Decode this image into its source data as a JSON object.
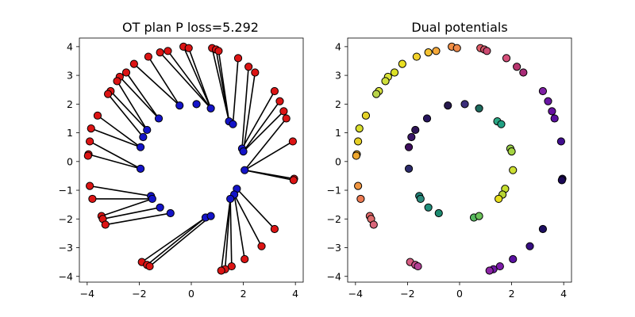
{
  "figure": {
    "background": "#ffffff"
  },
  "chart_data": [
    {
      "type": "scatter",
      "title": "OT plan P loss=5.292",
      "xlim": [
        -4.3,
        4.3
      ],
      "ylim": [
        -4.2,
        4.3
      ],
      "xticks": [
        -4,
        -2,
        0,
        2,
        4
      ],
      "yticks": [
        -4,
        -3,
        -2,
        -1,
        0,
        1,
        2,
        3,
        4
      ],
      "grid": false,
      "source_color": "#1414c8",
      "target_color": "#dc1414",
      "source_points": [
        [
          -0.45,
          1.95
        ],
        [
          0.2,
          2.0
        ],
        [
          0.75,
          1.85
        ],
        [
          1.45,
          1.4
        ],
        [
          1.6,
          1.3
        ],
        [
          -1.25,
          1.5
        ],
        [
          -1.7,
          1.1
        ],
        [
          -1.85,
          0.85
        ],
        [
          -1.95,
          0.5
        ],
        [
          1.95,
          0.45
        ],
        [
          2.0,
          0.35
        ],
        [
          2.05,
          -0.3
        ],
        [
          -1.95,
          -0.25
        ],
        [
          1.75,
          -0.95
        ],
        [
          1.65,
          -1.15
        ],
        [
          1.5,
          -1.3
        ],
        [
          -1.55,
          -1.2
        ],
        [
          -1.5,
          -1.3
        ],
        [
          -1.2,
          -1.6
        ],
        [
          -0.8,
          -1.8
        ],
        [
          0.55,
          -1.95
        ],
        [
          0.75,
          -1.9
        ]
      ],
      "target_points": [
        [
          -2.2,
          3.4
        ],
        [
          -1.65,
          3.65
        ],
        [
          -1.2,
          3.8
        ],
        [
          -0.9,
          3.85
        ],
        [
          -0.3,
          4.0
        ],
        [
          -0.1,
          3.95
        ],
        [
          0.8,
          3.95
        ],
        [
          0.95,
          3.9
        ],
        [
          1.05,
          3.85
        ],
        [
          1.8,
          3.6
        ],
        [
          2.2,
          3.3
        ],
        [
          2.45,
          3.1
        ],
        [
          -2.5,
          3.1
        ],
        [
          -2.75,
          2.95
        ],
        [
          -2.85,
          2.8
        ],
        [
          -3.1,
          2.45
        ],
        [
          -3.2,
          2.35
        ],
        [
          -3.6,
          1.6
        ],
        [
          -3.85,
          1.15
        ],
        [
          -3.9,
          0.7
        ],
        [
          -3.95,
          0.25
        ],
        [
          -3.97,
          0.2
        ],
        [
          3.2,
          2.45
        ],
        [
          3.4,
          2.1
        ],
        [
          3.55,
          1.75
        ],
        [
          3.65,
          1.5
        ],
        [
          3.9,
          0.7
        ],
        [
          3.95,
          -0.6
        ],
        [
          3.93,
          -0.65
        ],
        [
          -3.9,
          -0.85
        ],
        [
          -3.8,
          -1.3
        ],
        [
          -3.45,
          -1.9
        ],
        [
          -3.4,
          -2.0
        ],
        [
          -3.3,
          -2.2
        ],
        [
          3.2,
          -2.35
        ],
        [
          2.7,
          -2.95
        ],
        [
          2.05,
          -3.4
        ],
        [
          1.55,
          -3.65
        ],
        [
          1.3,
          -3.75
        ],
        [
          1.15,
          -3.8
        ],
        [
          -1.9,
          -3.5
        ],
        [
          -1.7,
          -3.6
        ],
        [
          -1.6,
          -3.65
        ]
      ],
      "plan_lines": [
        [
          -2.2,
          3.4,
          -0.45,
          1.95
        ],
        [
          -1.65,
          3.65,
          -0.45,
          1.95
        ],
        [
          -1.2,
          3.8,
          0.75,
          1.85
        ],
        [
          -0.9,
          3.85,
          0.75,
          1.85
        ],
        [
          -0.3,
          4.0,
          0.75,
          1.85
        ],
        [
          -0.1,
          3.95,
          0.75,
          1.85
        ],
        [
          0.8,
          3.95,
          1.45,
          1.4
        ],
        [
          0.95,
          3.9,
          1.45,
          1.4
        ],
        [
          1.05,
          3.85,
          1.45,
          1.4
        ],
        [
          1.8,
          3.6,
          1.6,
          1.3
        ],
        [
          2.2,
          3.3,
          1.95,
          0.45
        ],
        [
          2.45,
          3.1,
          2.0,
          0.35
        ],
        [
          -2.5,
          3.1,
          -1.25,
          1.5
        ],
        [
          -2.75,
          2.95,
          -1.25,
          1.5
        ],
        [
          -2.85,
          2.8,
          -1.7,
          1.1
        ],
        [
          -3.1,
          2.45,
          -1.7,
          1.1
        ],
        [
          -3.2,
          2.35,
          -1.85,
          0.85
        ],
        [
          -3.6,
          1.6,
          -1.95,
          0.5
        ],
        [
          -3.85,
          1.15,
          -1.95,
          0.5
        ],
        [
          -3.9,
          0.7,
          -1.95,
          -0.25
        ],
        [
          -3.95,
          0.25,
          -1.95,
          -0.25
        ],
        [
          3.2,
          2.45,
          1.95,
          0.45
        ],
        [
          3.4,
          2.1,
          2.0,
          0.35
        ],
        [
          3.55,
          1.75,
          2.0,
          0.35
        ],
        [
          3.65,
          1.5,
          2.05,
          -0.3
        ],
        [
          3.9,
          0.7,
          2.05,
          -0.3
        ],
        [
          3.95,
          -0.6,
          2.05,
          -0.3
        ],
        [
          3.93,
          -0.65,
          2.05,
          -0.3
        ],
        [
          -3.9,
          -0.85,
          -1.55,
          -1.2
        ],
        [
          -3.8,
          -1.3,
          -1.5,
          -1.3
        ],
        [
          -3.45,
          -1.9,
          -1.5,
          -1.3
        ],
        [
          -3.4,
          -2.0,
          -1.2,
          -1.6
        ],
        [
          -3.3,
          -2.2,
          -0.8,
          -1.8
        ],
        [
          3.2,
          -2.35,
          1.75,
          -0.95
        ],
        [
          2.7,
          -2.95,
          1.65,
          -1.15
        ],
        [
          2.05,
          -3.4,
          1.65,
          -1.15
        ],
        [
          1.55,
          -3.65,
          1.5,
          -1.3
        ],
        [
          1.3,
          -3.75,
          1.5,
          -1.3
        ],
        [
          1.15,
          -3.8,
          1.5,
          -1.3
        ],
        [
          -1.9,
          -3.5,
          0.55,
          -1.95
        ],
        [
          -1.7,
          -3.6,
          0.55,
          -1.95
        ],
        [
          -1.6,
          -3.65,
          0.75,
          -1.9
        ]
      ]
    },
    {
      "type": "scatter",
      "title": "Dual potentials",
      "xlim": [
        -4.3,
        4.3
      ],
      "ylim": [
        -4.2,
        4.3
      ],
      "xticks": [
        -4,
        -2,
        0,
        2,
        4
      ],
      "yticks": [
        -4,
        -3,
        -2,
        -1,
        0,
        1,
        2,
        3,
        4
      ],
      "grid": false,
      "colormap": "plasma-like",
      "points": [
        [
          -2.2,
          3.4,
          "#e9df22"
        ],
        [
          -1.65,
          3.65,
          "#f2d22b"
        ],
        [
          -1.2,
          3.8,
          "#f4c232"
        ],
        [
          -0.9,
          3.85,
          "#f5a93b"
        ],
        [
          -0.3,
          4.0,
          "#f29046"
        ],
        [
          -0.1,
          3.95,
          "#f08a4a"
        ],
        [
          0.8,
          3.95,
          "#dd5b66"
        ],
        [
          0.95,
          3.9,
          "#d6556a"
        ],
        [
          1.05,
          3.85,
          "#cc4b72"
        ],
        [
          1.8,
          3.6,
          "#d6507a"
        ],
        [
          2.2,
          3.3,
          "#b8366f"
        ],
        [
          2.45,
          3.1,
          "#a82b77"
        ],
        [
          -2.5,
          3.1,
          "#dbe126"
        ],
        [
          -2.75,
          2.95,
          "#dbe43a"
        ],
        [
          -2.85,
          2.8,
          "#cfe03b"
        ],
        [
          -3.1,
          2.45,
          "#d6e03c"
        ],
        [
          -3.2,
          2.35,
          "#b8d44a"
        ],
        [
          -3.6,
          1.6,
          "#e4d228"
        ],
        [
          -3.85,
          1.15,
          "#d9de2c"
        ],
        [
          -3.9,
          0.7,
          "#e6cf25"
        ],
        [
          -3.95,
          0.25,
          "#f3b12b"
        ],
        [
          -3.97,
          0.2,
          "#f0a82e"
        ],
        [
          3.2,
          2.45,
          "#7e1fa3"
        ],
        [
          3.4,
          2.1,
          "#6916a4"
        ],
        [
          3.55,
          1.75,
          "#6612a0"
        ],
        [
          3.65,
          1.5,
          "#5a10a0"
        ],
        [
          3.9,
          0.7,
          "#400d8e"
        ],
        [
          3.95,
          -0.6,
          "#19074f"
        ],
        [
          3.93,
          -0.65,
          "#1b0856"
        ],
        [
          -3.9,
          -0.85,
          "#f09540"
        ],
        [
          -3.8,
          -1.3,
          "#ec7a52"
        ],
        [
          -3.45,
          -1.9,
          "#e3686a"
        ],
        [
          -3.4,
          -2.0,
          "#e06c6c"
        ],
        [
          -3.3,
          -2.2,
          "#d8667a"
        ],
        [
          3.2,
          -2.35,
          "#1d0e60"
        ],
        [
          2.7,
          -2.95,
          "#360e82"
        ],
        [
          2.05,
          -3.4,
          "#5a11a0"
        ],
        [
          1.55,
          -3.65,
          "#7d1ca8"
        ],
        [
          1.3,
          -3.75,
          "#6e19a4"
        ],
        [
          1.15,
          -3.8,
          "#8d25a6"
        ],
        [
          -1.9,
          -3.5,
          "#d65c82"
        ],
        [
          -1.7,
          -3.6,
          "#c84a8c"
        ],
        [
          -1.6,
          -3.65,
          "#b24094"
        ],
        [
          -0.45,
          1.95,
          "#271a4e"
        ],
        [
          0.2,
          2.0,
          "#3b2e7a"
        ],
        [
          0.75,
          1.85,
          "#1e6b5e"
        ],
        [
          1.45,
          1.4,
          "#2aa784"
        ],
        [
          1.6,
          1.3,
          "#22a184"
        ],
        [
          -1.25,
          1.5,
          "#26155c"
        ],
        [
          -1.7,
          1.1,
          "#2e1456"
        ],
        [
          -1.85,
          0.85,
          "#3a1668"
        ],
        [
          -1.95,
          0.5,
          "#3d0d5c"
        ],
        [
          1.95,
          0.45,
          "#97cd4a"
        ],
        [
          2.0,
          0.35,
          "#a5d442"
        ],
        [
          2.05,
          -0.3,
          "#cddf33"
        ],
        [
          -1.95,
          -0.25,
          "#2c2a6b"
        ],
        [
          1.75,
          -0.95,
          "#c6df2e"
        ],
        [
          1.65,
          -1.15,
          "#b8d535"
        ],
        [
          1.5,
          -1.3,
          "#e7de1c"
        ],
        [
          -1.55,
          -1.2,
          "#1e7f75"
        ],
        [
          -1.5,
          -1.3,
          "#2b8a7c"
        ],
        [
          -1.2,
          -1.6,
          "#218f7c"
        ],
        [
          -0.8,
          -1.8,
          "#1d8a70"
        ],
        [
          0.55,
          -1.95,
          "#56ba5f"
        ],
        [
          0.75,
          -1.9,
          "#6cc35a"
        ]
      ]
    }
  ]
}
